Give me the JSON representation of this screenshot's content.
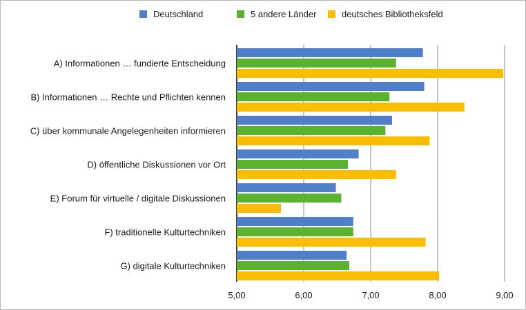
{
  "colors": {
    "series": [
      "#4f7fc8",
      "#5bb22f",
      "#fbbd00"
    ],
    "grid": "#b3b3b3",
    "axis": "#000000",
    "frame": "#b9b9b9"
  },
  "legend": {
    "placement": "top",
    "items": [
      "Deutschland",
      "5 andere Länder",
      "deutsches Bibliotheksfeld"
    ]
  },
  "chart_data": {
    "type": "bar",
    "orientation": "horizontal",
    "grid": true,
    "xlim": [
      5,
      9
    ],
    "x_ticks": [
      "5,00",
      "6,00",
      "7,00",
      "8,00",
      "9,00"
    ],
    "categories": [
      "A) Informationen … fundierte Entscheidung",
      "B) Informationen … Rechte und Pflichten kennen",
      "C) über kommunale Angelegenheiten informieren",
      "D) öffentliche Diskussionen vor Ort",
      "E) Forum für virtuelle / digitale Diskussionen",
      "F) traditionelle Kulturtechniken",
      "G) digitale Kulturtechniken"
    ],
    "series": [
      {
        "name": "Deutschland",
        "values": [
          7.78,
          7.8,
          7.32,
          6.82,
          6.48,
          6.74,
          6.64
        ]
      },
      {
        "name": "5 andere Länder",
        "values": [
          7.38,
          7.28,
          7.22,
          6.66,
          6.56,
          6.74,
          6.68
        ]
      },
      {
        "name": "deutsches Bibliotheksfeld",
        "values": [
          8.98,
          8.4,
          7.88,
          7.38,
          5.66,
          7.82,
          8.02
        ]
      }
    ]
  }
}
